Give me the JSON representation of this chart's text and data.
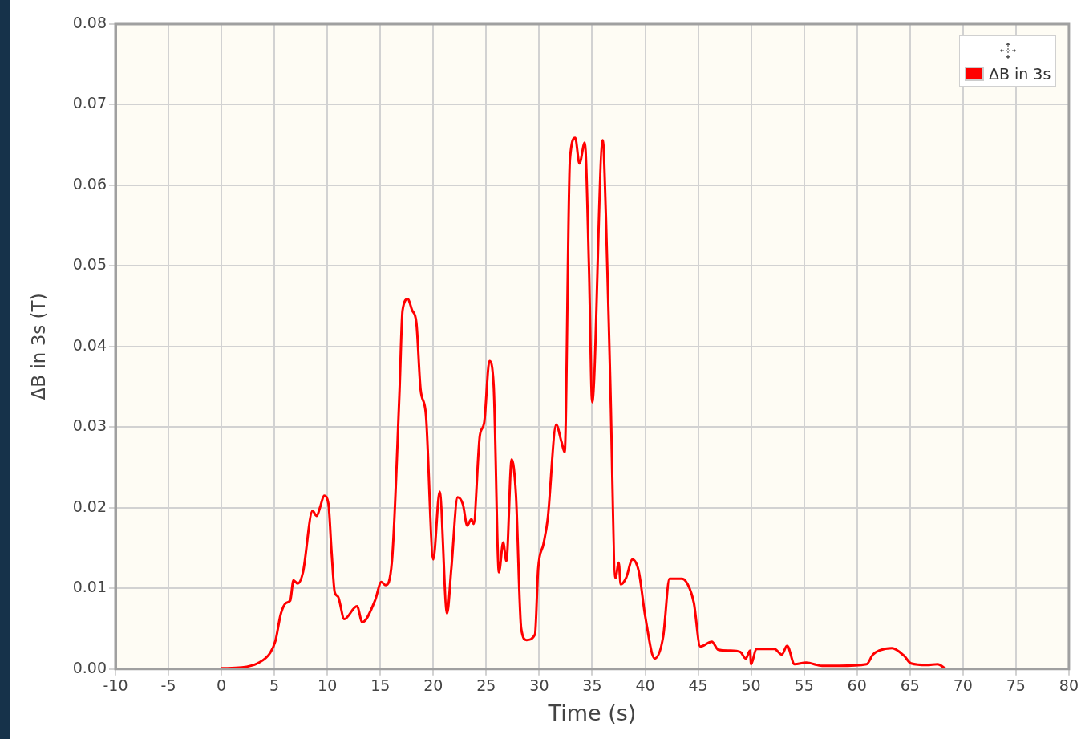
{
  "chart_data": {
    "type": "line",
    "xlabel": "Time (s)",
    "ylabel": "ΔB in 3s (T)",
    "xlim": [
      -10,
      80
    ],
    "xticks": [
      -10,
      -5,
      0,
      5,
      10,
      15,
      20,
      25,
      30,
      35,
      40,
      45,
      50,
      55,
      60,
      65,
      70,
      75,
      80
    ],
    "ylim": [
      0,
      0.08
    ],
    "yticks": [
      {
        "value": 0,
        "label": "0.00"
      },
      0.01,
      0.02,
      0.03,
      0.04,
      0.05,
      0.06,
      0.07,
      0.08
    ],
    "grid": true,
    "legend": "top right",
    "marker": "none",
    "line_style": "solid",
    "series": [
      {
        "name": "ΔB in 3s",
        "color": "#ff0000",
        "x": [
          0,
          1.9,
          3.4,
          4.6,
          5.1,
          5.6,
          6.1,
          6.5,
          6.8,
          7.2,
          7.7,
          8.6,
          9.0,
          9.3,
          9.7,
          10.1,
          10.4,
          10.7,
          11.0,
          11.6,
          12.8,
          13.3,
          14.5,
          15.1,
          15.5,
          16.1,
          16.8,
          17.1,
          17.6,
          18.0,
          18.4,
          18.8,
          19.3,
          20.0,
          20.6,
          21.3,
          21.7,
          22.3,
          22.8,
          23.2,
          23.6,
          23.8,
          24.4,
          24.8,
          25.3,
          25.7,
          26.2,
          26.6,
          26.9,
          27.4,
          27.8,
          28.3,
          28.8,
          29.6,
          29.9,
          30.4,
          30.8,
          31.6,
          32.1,
          32.4,
          32.9,
          33.4,
          33.8,
          34.3,
          34.7,
          35.0,
          36.0,
          36.3,
          36.7,
          37.2,
          37.5,
          37.7,
          38.2,
          38.8,
          39.4,
          40.0,
          40.9,
          41.7,
          42.3,
          43.5,
          44.2,
          44.6,
          45.2,
          46.3,
          46.9,
          48.0,
          49.0,
          49.5,
          49.9,
          50.0,
          50.5,
          52.2,
          52.9,
          53.4,
          54.1,
          55.2,
          56.7,
          58.3,
          60.9,
          61.5,
          62.1,
          63.3,
          64.4,
          65.1,
          66.6,
          67.6,
          68.3
        ],
        "values": [
          0.0001,
          0.0002,
          0.0007,
          0.002,
          0.0035,
          0.0068,
          0.0082,
          0.0085,
          0.011,
          0.0106,
          0.012,
          0.0196,
          0.019,
          0.02,
          0.0215,
          0.0205,
          0.0145,
          0.0095,
          0.009,
          0.0062,
          0.0078,
          0.0058,
          0.0085,
          0.0108,
          0.0104,
          0.0134,
          0.034,
          0.0445,
          0.0459,
          0.0445,
          0.043,
          0.0347,
          0.0316,
          0.0136,
          0.022,
          0.0069,
          0.0124,
          0.0213,
          0.0204,
          0.0178,
          0.0186,
          0.018,
          0.029,
          0.0305,
          0.0382,
          0.0352,
          0.012,
          0.0157,
          0.0134,
          0.026,
          0.0217,
          0.005,
          0.0036,
          0.0043,
          0.0124,
          0.0155,
          0.0186,
          0.0303,
          0.0282,
          0.0269,
          0.0632,
          0.0659,
          0.0627,
          0.0653,
          0.0497,
          0.0331,
          0.0656,
          0.056,
          0.036,
          0.0113,
          0.0132,
          0.0105,
          0.0113,
          0.0136,
          0.0121,
          0.0066,
          0.0013,
          0.004,
          0.0112,
          0.0112,
          0.01,
          0.0082,
          0.0028,
          0.0034,
          0.0024,
          0.0023,
          0.0021,
          0.0013,
          0.0023,
          0.0006,
          0.0025,
          0.0025,
          0.0018,
          0.0029,
          0.0006,
          0.0008,
          0.0004,
          0.0004,
          0.0006,
          0.0018,
          0.0023,
          0.0026,
          0.0017,
          0.0007,
          0.0005,
          0.0006,
          0.0001
        ]
      }
    ]
  }
}
